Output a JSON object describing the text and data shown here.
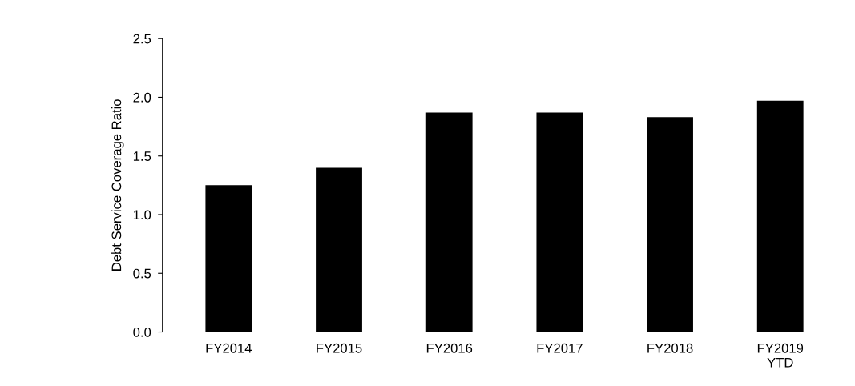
{
  "chart_data": {
    "type": "bar",
    "ylabel": "Debt Service Coverage Ratio",
    "categories": [
      "FY2014",
      "FY2015",
      "FY2016",
      "FY2017",
      "FY2018",
      "FY2019\nYTD"
    ],
    "values": [
      1.25,
      1.4,
      1.87,
      1.87,
      1.83,
      1.97
    ],
    "color": "#000000",
    "ylim": [
      0,
      2.5
    ],
    "yticks": [
      {
        "value": 0,
        "label": "0.0"
      },
      0.5,
      {
        "value": 1,
        "label": "1.0"
      },
      1.5,
      {
        "value": 2,
        "label": "2.0"
      },
      2.5
    ],
    "grid": false
  }
}
